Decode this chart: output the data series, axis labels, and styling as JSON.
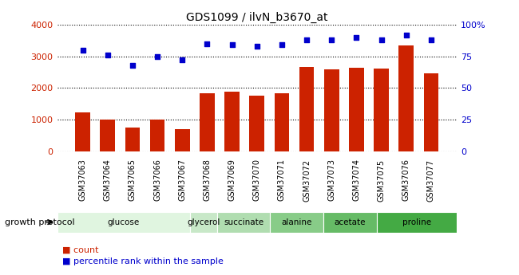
{
  "title": "GDS1099 / ilvN_b3670_at",
  "samples": [
    "GSM37063",
    "GSM37064",
    "GSM37065",
    "GSM37066",
    "GSM37067",
    "GSM37068",
    "GSM37069",
    "GSM37070",
    "GSM37071",
    "GSM37072",
    "GSM37073",
    "GSM37074",
    "GSM37075",
    "GSM37076",
    "GSM37077"
  ],
  "counts": [
    1220,
    1000,
    740,
    1000,
    700,
    1840,
    1890,
    1760,
    1840,
    2660,
    2580,
    2650,
    2620,
    3350,
    2460
  ],
  "percentile_ranks": [
    80,
    76,
    68,
    75,
    72,
    85,
    84,
    83,
    84,
    88,
    88,
    90,
    88,
    92,
    88
  ],
  "bar_color": "#cc2200",
  "dot_color": "#0000cc",
  "ylim_left": [
    0,
    4000
  ],
  "ylim_right": [
    0,
    100
  ],
  "yticks_left": [
    0,
    1000,
    2000,
    3000,
    4000
  ],
  "yticks_right": [
    0,
    25,
    50,
    75,
    100
  ],
  "groups": [
    {
      "label": "glucose",
      "start": 0,
      "end": 5,
      "color": "#e0f5e0"
    },
    {
      "label": "glycerol",
      "start": 5,
      "end": 6,
      "color": "#c8e8c8"
    },
    {
      "label": "succinate",
      "start": 6,
      "end": 8,
      "color": "#b0ddb0"
    },
    {
      "label": "alanine",
      "start": 8,
      "end": 10,
      "color": "#88cc88"
    },
    {
      "label": "acetate",
      "start": 10,
      "end": 12,
      "color": "#66bb66"
    },
    {
      "label": "proline",
      "start": 12,
      "end": 15,
      "color": "#44aa44"
    }
  ],
  "growth_protocol_label": "growth protocol",
  "legend_count_label": "count",
  "legend_pct_label": "percentile rank within the sample",
  "tick_label_color_left": "#cc2200",
  "tick_label_color_right": "#0000cc",
  "xtick_bg_color": "#bbbbbb",
  "background_color": "#ffffff"
}
